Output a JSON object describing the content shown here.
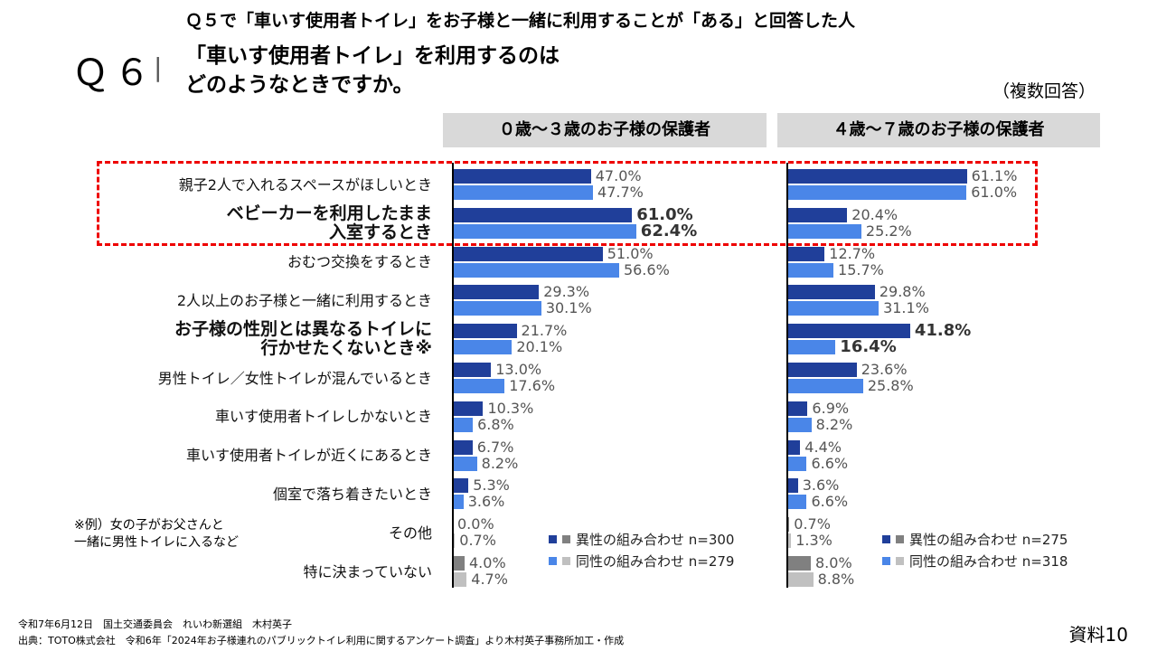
{
  "header": {
    "q_number": "Ｑ６",
    "separator": "|",
    "q5_condition": "Ｑ５で「車いす使用者トイレ」をお子様と一緒に利用することが「ある」と回答した人",
    "title_line1": "「車いす使用者トイレ」を利用するのは",
    "title_line2": "どのようなときですか。",
    "multiple_answer": "（複数回答）"
  },
  "note": "※例）女の子がお父さんと一緒に男性トイレに入るなど",
  "footer": {
    "line1": "令和7年6月12日　国土交通委員会　れいわ新選組　木村英子",
    "line2": "出典：TOTO株式会社　令和6年「2024年お子様連れのパブリックトイレ利用に関するアンケート調査」より木村英子事務所加工・作成",
    "doc_label": "資料10"
  },
  "colors": {
    "dark": "#203f9a",
    "light": "#4a86e8",
    "gray_dark": "#808080",
    "gray_light": "#c0c0c0",
    "highlight": "#e00000"
  },
  "chart_data": {
    "type": "bar",
    "orientation": "horizontal",
    "xlim": [
      0,
      100
    ],
    "categories": [
      "親子2人で入れるスペースがほしいとき",
      "ベビーカーを利用したまま\n入室するとき",
      "おむつ交換をするとき",
      "2人以上のお子様と一緒に利用するとき",
      "お子様の性別とは異なるトイレに\n行かせたくないとき※",
      "男性トイレ／女性トイレが混んでいるとき",
      "車いす使用者トイレしかないとき",
      "車いす使用者トイレが近くにあるとき",
      "個室で落ち着きたいとき",
      "その他",
      "特に決まっていない"
    ],
    "bold_categories": [
      1,
      4
    ],
    "panels": [
      {
        "title": "０歳～３歳のお子様の保護者",
        "series": [
          {
            "name": "異性の組み合わせ n=300",
            "values": [
              47.0,
              61.0,
              51.0,
              29.3,
              21.7,
              13.0,
              10.3,
              6.7,
              5.3,
              0.0,
              4.0
            ]
          },
          {
            "name": "同性の組み合わせ n=279",
            "values": [
              47.7,
              62.4,
              56.6,
              30.1,
              20.1,
              17.6,
              6.8,
              8.2,
              3.6,
              0.7,
              4.7
            ]
          }
        ],
        "bold_rows": [
          1
        ]
      },
      {
        "title": "４歳～７歳のお子様の保護者",
        "series": [
          {
            "name": "異性の組み合わせ n=275",
            "values": [
              61.1,
              20.4,
              12.7,
              29.8,
              41.8,
              23.6,
              6.9,
              4.4,
              3.6,
              0.7,
              8.0
            ]
          },
          {
            "name": "同性の組み合わせ n=318",
            "values": [
              61.0,
              25.2,
              15.7,
              31.1,
              16.4,
              25.8,
              8.2,
              6.6,
              6.6,
              1.3,
              8.8
            ]
          }
        ],
        "bold_rows": [
          4
        ]
      }
    ]
  }
}
